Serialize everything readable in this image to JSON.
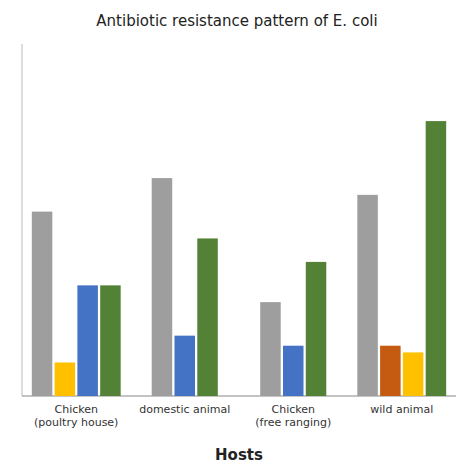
{
  "chart_data": {
    "type": "bar",
    "title": "Antibiotic resistance pattern of E. coli",
    "xlabel": "Hosts",
    "categories": [
      "Chicken\n(poultry house)",
      "domestic animal",
      "Chicken\n(free ranging)",
      "wild animal"
    ],
    "series": [
      {
        "color": "#9e9e9e",
        "values": [
          55,
          65,
          28,
          60
        ]
      },
      {
        "color": "#C55A11",
        "values": [
          null,
          null,
          null,
          15
        ]
      },
      {
        "color": "#FFC000",
        "values": [
          10,
          null,
          null,
          13
        ]
      },
      {
        "color": "#4472C4",
        "values": [
          33,
          18,
          15,
          null
        ]
      },
      {
        "color": "#538135",
        "values": [
          33,
          47,
          40,
          82
        ]
      }
    ],
    "ylim": [
      0,
      105
    ],
    "yticks": [],
    "grid": false,
    "tick_labels": "x"
  }
}
